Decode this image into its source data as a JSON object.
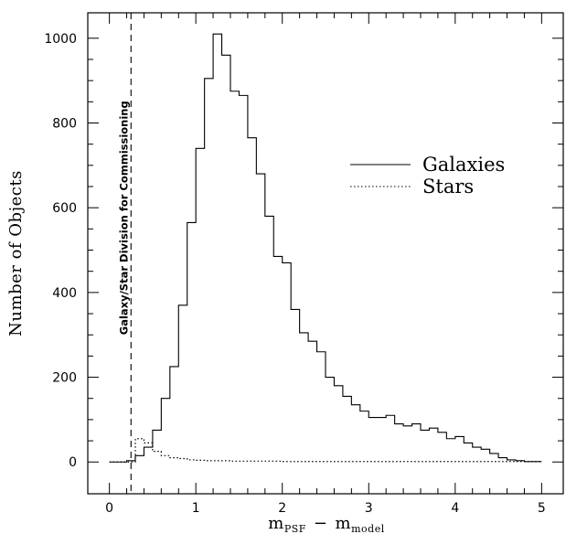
{
  "chart_data": {
    "type": "line",
    "style": "step-histogram",
    "xlabel": {
      "main": "m",
      "sub1": "PSF",
      "minus": "−",
      "main2": "m",
      "sub2": "model"
    },
    "ylabel": "Number of Objects",
    "xlim": [
      -0.25,
      5.25
    ],
    "ylim": [
      -75,
      1060
    ],
    "x_ticks": [
      0,
      1,
      2,
      3,
      4,
      5
    ],
    "y_ticks": [
      0,
      200,
      400,
      600,
      800,
      1000
    ],
    "grid": false,
    "legend_position": "right",
    "annotation": {
      "text": "Galaxy/Star Division for Commissioning",
      "x": 0.25
    },
    "series": [
      {
        "name": "Galaxies",
        "style": "solid",
        "bin_width": 0.1,
        "x_start": 0,
        "values": [
          0,
          0,
          3,
          15,
          35,
          75,
          150,
          225,
          370,
          565,
          740,
          905,
          1010,
          960,
          875,
          865,
          765,
          680,
          580,
          485,
          470,
          360,
          305,
          285,
          260,
          200,
          180,
          155,
          135,
          120,
          105,
          105,
          110,
          90,
          85,
          90,
          75,
          80,
          70,
          55,
          60,
          45,
          35,
          30,
          20,
          10,
          5,
          3,
          1,
          1
        ]
      },
      {
        "name": "Stars",
        "style": "dotted",
        "bin_width": 0.1,
        "x_start": 0,
        "values": [
          0,
          0,
          0,
          55,
          45,
          25,
          15,
          10,
          8,
          5,
          4,
          3,
          3,
          3,
          2,
          2,
          2,
          2,
          2,
          2,
          1,
          1,
          1,
          1,
          1,
          1,
          1,
          1,
          1,
          1,
          1,
          1,
          1,
          1,
          1,
          1,
          1,
          1,
          1,
          1,
          1,
          1,
          1,
          1,
          1,
          1,
          1,
          1,
          1,
          1
        ]
      }
    ]
  }
}
